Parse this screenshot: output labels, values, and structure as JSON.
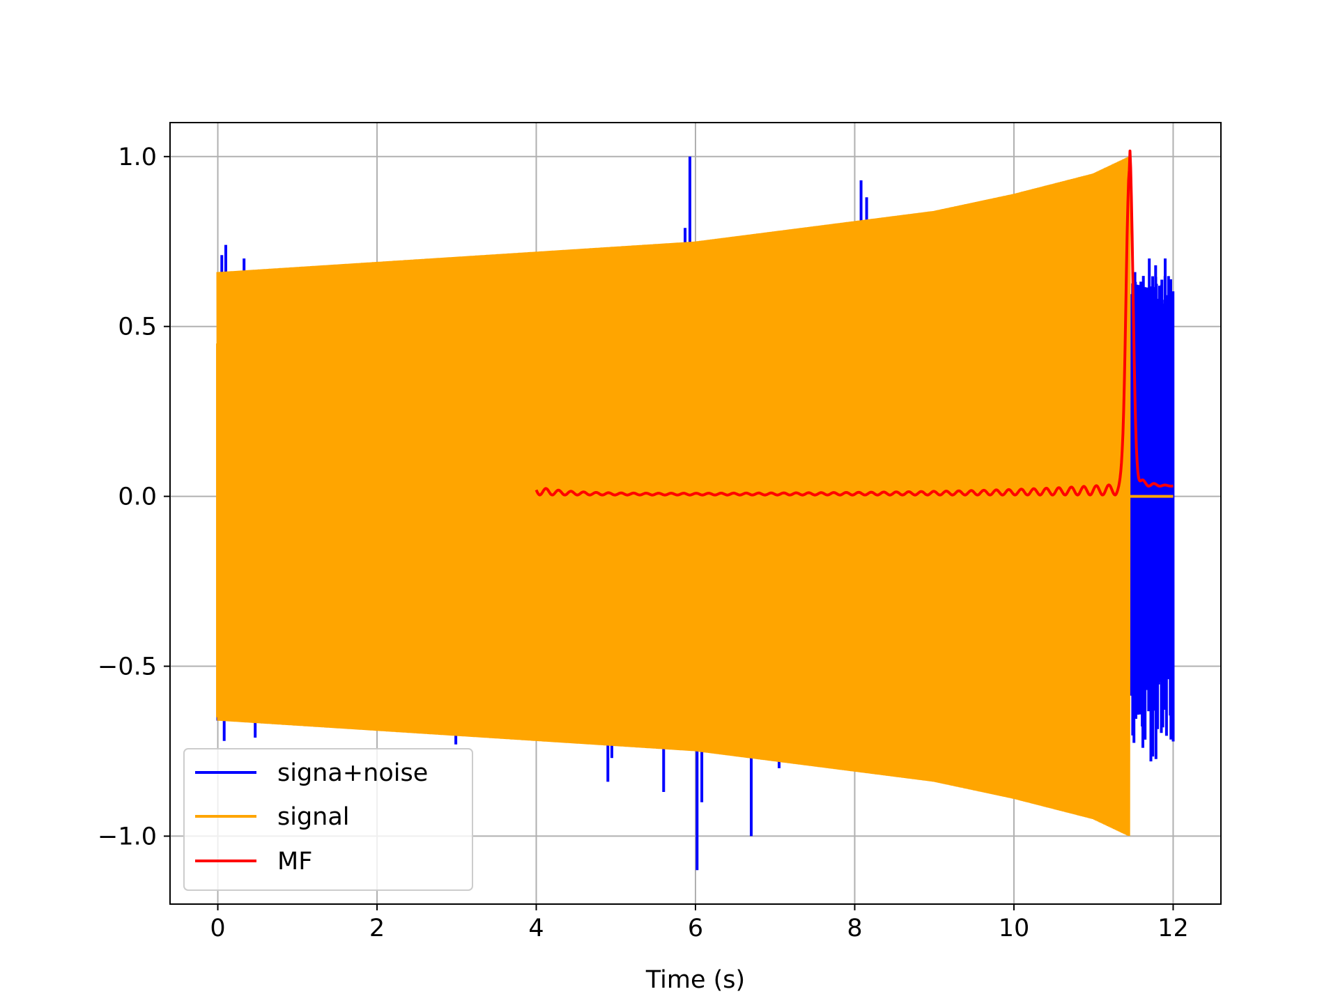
{
  "chart_data": {
    "type": "line",
    "title": "",
    "xlabel": "Time (s)",
    "ylabel": "",
    "xlim": [
      -0.6,
      12.6
    ],
    "ylim": [
      -1.2,
      1.1
    ],
    "grid": true,
    "legend_position": "lower-left",
    "x_ticks": [
      0,
      2,
      4,
      6,
      8,
      10,
      12
    ],
    "x_tick_labels": [
      "0",
      "2",
      "4",
      "6",
      "8",
      "10",
      "12"
    ],
    "y_ticks": [
      1.0,
      0.5,
      0.0,
      -0.5,
      -1.0
    ],
    "y_tick_labels": [
      "1.0",
      "0.5",
      "0.0",
      "−0.5",
      "−1.0"
    ],
    "series": [
      {
        "name": "signa+noise",
        "color": "#0000ff",
        "kind": "noisy-chirp",
        "t_range": [
          0,
          12
        ],
        "spikes": [
          [
            0.02,
            -0.38
          ],
          [
            0.05,
            0.71
          ],
          [
            0.08,
            -0.72
          ],
          [
            0.1,
            0.74
          ],
          [
            0.33,
            0.7
          ],
          [
            0.47,
            -0.71
          ],
          [
            2.99,
            -0.73
          ],
          [
            4.9,
            -0.84
          ],
          [
            4.95,
            -0.77
          ],
          [
            5.6,
            -0.87
          ],
          [
            5.87,
            0.79
          ],
          [
            5.93,
            1.0
          ],
          [
            6.02,
            -1.1
          ],
          [
            6.08,
            -0.9
          ],
          [
            6.7,
            -1.0
          ],
          [
            7.05,
            -0.8
          ],
          [
            8.08,
            0.93
          ],
          [
            8.15,
            0.88
          ],
          [
            11.52,
            0.66
          ],
          [
            11.6,
            0.52
          ],
          [
            11.65,
            0.6
          ],
          [
            11.7,
            0.7
          ],
          [
            11.78,
            0.68
          ],
          [
            11.83,
            0.62
          ],
          [
            11.9,
            0.7
          ],
          [
            11.94,
            0.5
          ],
          [
            11.98,
            0.45
          ],
          [
            11.55,
            -0.61
          ],
          [
            11.62,
            -0.74
          ],
          [
            11.72,
            -0.78
          ],
          [
            11.8,
            -0.64
          ],
          [
            11.87,
            -0.68
          ],
          [
            11.95,
            -0.43
          ]
        ]
      },
      {
        "name": "signal",
        "color": "#ffa500",
        "kind": "chirp",
        "t_range": [
          0,
          11.45
        ],
        "envelope": [
          [
            0,
            0.66
          ],
          [
            2,
            0.69
          ],
          [
            4,
            0.72
          ],
          [
            6,
            0.75
          ],
          [
            8,
            0.81
          ],
          [
            9,
            0.84
          ],
          [
            10,
            0.89
          ],
          [
            11,
            0.95
          ],
          [
            11.45,
            1.0
          ]
        ],
        "zero_after": [
          11.45,
          12
        ]
      },
      {
        "name": "MF",
        "color": "#ff0000",
        "kind": "matched-filter",
        "t_range": [
          4,
          12
        ],
        "peak": [
          11.45,
          1.0
        ]
      }
    ]
  }
}
